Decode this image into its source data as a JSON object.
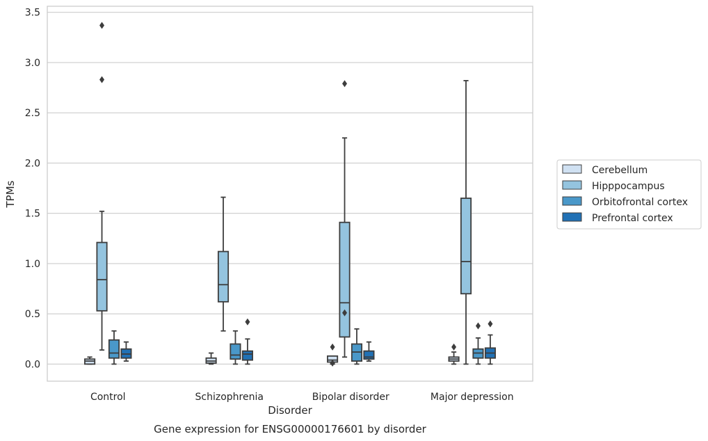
{
  "chart_data": {
    "type": "box",
    "title": "Gene expression for ENSG00000176601 by disorder",
    "xlabel": "Disorder",
    "ylabel": "TPMs",
    "ylim": [
      -0.17,
      3.56
    ],
    "y_ticks": [
      "0.0",
      "0.5",
      "1.0",
      "1.5",
      "2.0",
      "2.5",
      "3.0",
      "3.5"
    ],
    "grid": true,
    "legend_position": "right",
    "categories": [
      "Control",
      "Schizophrenia",
      "Bipolar disorder",
      "Major depression"
    ],
    "series": [
      {
        "name": "Cerebellum",
        "color": "#d0e1f2",
        "boxes": [
          {
            "whisker_low": 0.0,
            "q1": 0.0,
            "median": 0.03,
            "q3": 0.05,
            "whisker_high": 0.07,
            "outliers": []
          },
          {
            "whisker_low": 0.0,
            "q1": 0.01,
            "median": 0.03,
            "q3": 0.06,
            "whisker_high": 0.11,
            "outliers": []
          },
          {
            "whisker_low": 0.0,
            "q1": 0.02,
            "median": 0.04,
            "q3": 0.08,
            "whisker_high": 0.08,
            "outliers": [
              0.17,
              0.01
            ]
          },
          {
            "whisker_low": 0.0,
            "q1": 0.03,
            "median": 0.05,
            "q3": 0.07,
            "whisker_high": 0.12,
            "outliers": [
              0.17
            ]
          }
        ]
      },
      {
        "name": "Hipppocampus",
        "color": "#94c4df",
        "boxes": [
          {
            "whisker_low": 0.14,
            "q1": 0.53,
            "median": 0.84,
            "q3": 1.21,
            "whisker_high": 1.52,
            "outliers": [
              2.83,
              3.37
            ]
          },
          {
            "whisker_low": 0.33,
            "q1": 0.62,
            "median": 0.79,
            "q3": 1.12,
            "whisker_high": 1.66,
            "outliers": []
          },
          {
            "whisker_low": 0.07,
            "q1": 0.27,
            "median": 0.61,
            "q3": 1.41,
            "whisker_high": 2.25,
            "outliers": [
              0.51,
              2.79
            ]
          },
          {
            "whisker_low": 0.0,
            "q1": 0.7,
            "median": 1.02,
            "q3": 1.65,
            "whisker_high": 2.82,
            "outliers": []
          }
        ]
      },
      {
        "name": "Orbitofrontal cortex",
        "color": "#4a98c9",
        "boxes": [
          {
            "whisker_low": 0.0,
            "q1": 0.06,
            "median": 0.11,
            "q3": 0.24,
            "whisker_high": 0.33,
            "outliers": []
          },
          {
            "whisker_low": 0.0,
            "q1": 0.05,
            "median": 0.09,
            "q3": 0.2,
            "whisker_high": 0.33,
            "outliers": []
          },
          {
            "whisker_low": 0.0,
            "q1": 0.03,
            "median": 0.12,
            "q3": 0.2,
            "whisker_high": 0.35,
            "outliers": []
          },
          {
            "whisker_low": 0.0,
            "q1": 0.06,
            "median": 0.11,
            "q3": 0.15,
            "whisker_high": 0.26,
            "outliers": [
              0.38
            ]
          }
        ]
      },
      {
        "name": "Prefrontal cortex",
        "color": "#2171b5",
        "boxes": [
          {
            "whisker_low": 0.03,
            "q1": 0.06,
            "median": 0.1,
            "q3": 0.15,
            "whisker_high": 0.22,
            "outliers": []
          },
          {
            "whisker_low": 0.0,
            "q1": 0.04,
            "median": 0.1,
            "q3": 0.13,
            "whisker_high": 0.25,
            "outliers": [
              0.42
            ]
          },
          {
            "whisker_low": 0.03,
            "q1": 0.05,
            "median": 0.07,
            "q3": 0.13,
            "whisker_high": 0.22,
            "outliers": []
          },
          {
            "whisker_low": 0.0,
            "q1": 0.06,
            "median": 0.11,
            "q3": 0.16,
            "whisker_high": 0.29,
            "outliers": [
              0.4
            ]
          }
        ]
      }
    ]
  }
}
